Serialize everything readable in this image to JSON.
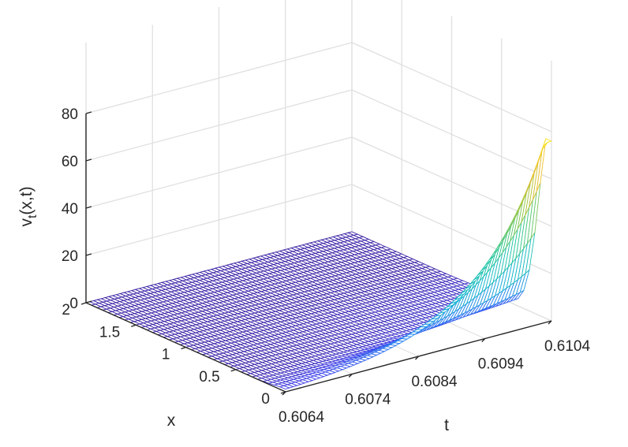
{
  "chart_data": {
    "type": "surface",
    "title": "",
    "xlabel": "x",
    "ylabel": "t",
    "zlabel": "v_t(x,t)",
    "zlabel_main": "v",
    "zlabel_sub": "t",
    "zlabel_rest": "(x,t)",
    "xlim": [
      0,
      2
    ],
    "tlim": [
      0.6064,
      0.6104
    ],
    "zlim": [
      0,
      80
    ],
    "x_ticks": [
      {
        "value": 0,
        "label": "0"
      },
      {
        "value": 0.5,
        "label": "0.5"
      },
      {
        "value": 1,
        "label": "1"
      },
      {
        "value": 1.5,
        "label": "1.5"
      },
      {
        "value": 2,
        "label": "2"
      }
    ],
    "t_ticks": [
      {
        "value": 0.6064,
        "label": "0.6064"
      },
      {
        "value": 0.6074,
        "label": "0.6074"
      },
      {
        "value": 0.6084,
        "label": "0.6084"
      },
      {
        "value": 0.6094,
        "label": "0.6094"
      },
      {
        "value": 0.6104,
        "label": "0.6104"
      }
    ],
    "z_ticks": [
      {
        "value": 0,
        "label": "0"
      },
      {
        "value": 20,
        "label": "20"
      },
      {
        "value": 40,
        "label": "40"
      },
      {
        "value": 60,
        "label": "60"
      },
      {
        "value": 80,
        "label": "80"
      }
    ],
    "surface": {
      "x_range": [
        0,
        2
      ],
      "t_range": [
        0.6064,
        0.6104
      ],
      "peak_value": 76,
      "peak_location": {
        "x": 0,
        "t": 0.6104
      },
      "colormap": "parula",
      "mesh_style": "wireframe"
    },
    "grid": true,
    "colors": {
      "surface_low": "#3e26a8",
      "surface_mid": "#33b7d6",
      "surface_high": "#f9c933",
      "axis": "#262626",
      "grid": "#e0e0e0"
    }
  }
}
